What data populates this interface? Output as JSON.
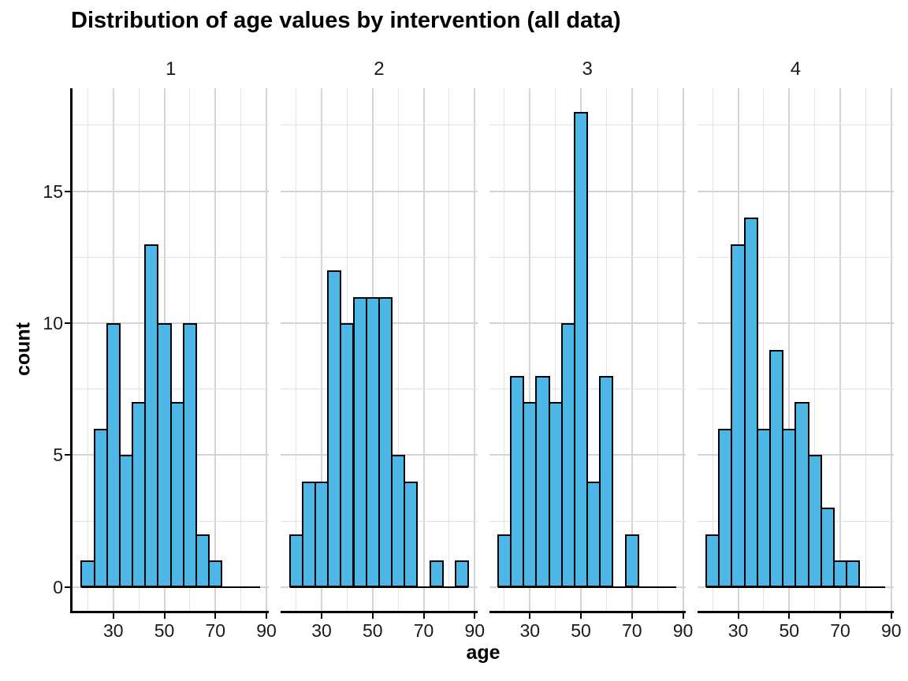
{
  "chart_data": {
    "type": "bar",
    "subtype": "faceted-histogram",
    "title": "Distribution of age values by intervention (all data)",
    "xlabel": "age",
    "ylabel": "count",
    "facet_variable": "intervention",
    "facets": [
      "1",
      "2",
      "3",
      "4"
    ],
    "bin_width": 5,
    "bin_centers": [
      20,
      25,
      30,
      35,
      40,
      45,
      50,
      55,
      60,
      65,
      70,
      75,
      80,
      85
    ],
    "series": [
      {
        "name": "1",
        "values": [
          1,
          6,
          10,
          5,
          7,
          13,
          10,
          7,
          10,
          2,
          1,
          0,
          0,
          0
        ]
      },
      {
        "name": "2",
        "values": [
          2,
          4,
          4,
          12,
          10,
          11,
          11,
          11,
          5,
          4,
          0,
          1,
          0,
          1
        ]
      },
      {
        "name": "3",
        "values": [
          2,
          8,
          7,
          8,
          7,
          10,
          18,
          4,
          8,
          0,
          2,
          0,
          0,
          0
        ]
      },
      {
        "name": "4",
        "values": [
          2,
          6,
          13,
          14,
          6,
          9,
          6,
          7,
          5,
          3,
          1,
          1,
          0,
          0
        ]
      }
    ],
    "xlim": [
      14,
      91
    ],
    "ylim": [
      -0.9,
      18.9
    ],
    "x_ticks": [
      30,
      50,
      70,
      90
    ],
    "x_tick_labels": [
      "30",
      "50",
      "70",
      "90"
    ],
    "y_ticks": [
      0,
      5,
      10,
      15
    ],
    "y_tick_labels": [
      "0",
      "5",
      "10",
      "15"
    ],
    "grid_minor_x": [
      20,
      40,
      60,
      80
    ],
    "grid_minor_y": [
      2.5,
      7.5,
      12.5,
      17.5
    ],
    "grid": true,
    "legend": false,
    "colors": {
      "bar_fill": "#4CB7E6",
      "bar_stroke": "#000000",
      "grid_major": "#d4d4d4",
      "grid_minor": "#e2e2e2",
      "axis_line": "#000000",
      "text": "#000000",
      "tick_text": "#1a1a1a",
      "background": "#ffffff"
    }
  }
}
